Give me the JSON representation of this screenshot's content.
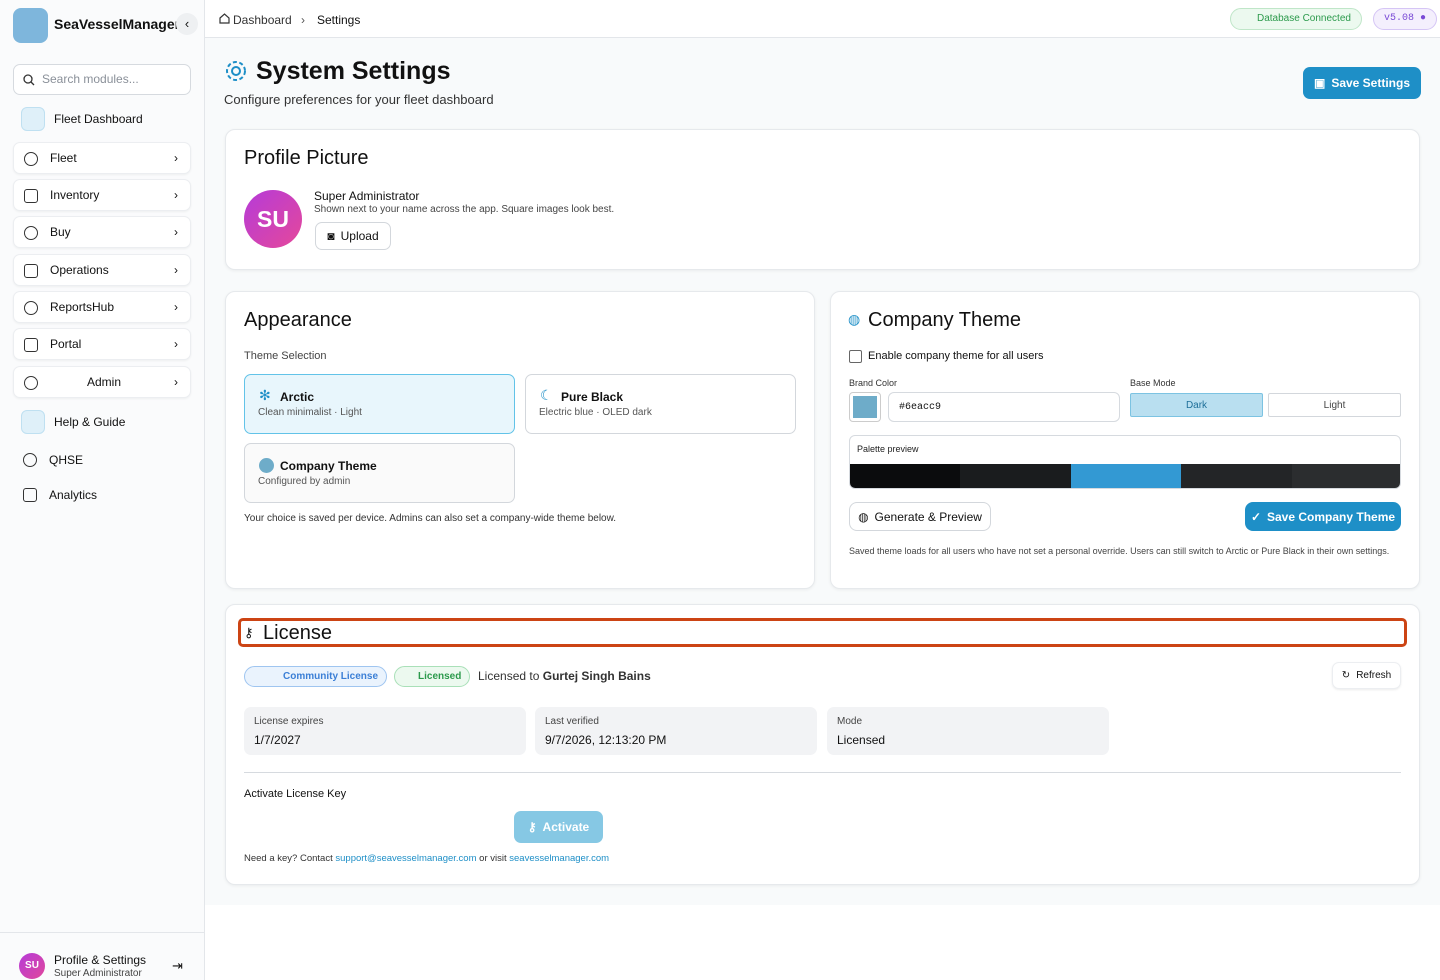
{
  "sidebar": {
    "brand": "SeaVesselManager",
    "search_placeholder": "Search modules...",
    "nav": [
      "Fleet Dashboard",
      "Fleet",
      "Inventory",
      "Buy",
      "Operations",
      "ReportsHub",
      "Portal",
      "Admin",
      "Help & Guide",
      "QHSE",
      "Analytics"
    ],
    "profile": {
      "initials": "SU",
      "name": "Profile & Settings",
      "role": "Super Administrator"
    }
  },
  "topbar": {
    "breadcrumb": [
      "Dashboard",
      "Settings"
    ],
    "status": "Database Connected",
    "version": "v5.08"
  },
  "header": {
    "title": "System Settings",
    "subtitle": "Configure preferences for your fleet dashboard",
    "save_button": "Save Settings"
  },
  "profile_picture": {
    "title": "Profile Picture",
    "initials": "SU",
    "name": "Super Administrator",
    "hint": "Shown next to your name across the app. Square images look best.",
    "upload_button": "Upload"
  },
  "appearance": {
    "title": "Appearance",
    "section_label": "Theme Selection",
    "themes": [
      {
        "name": "Arctic",
        "description": "Clean minimalist · Light"
      },
      {
        "name": "Pure Black",
        "description": "Electric blue · OLED dark"
      },
      {
        "name": "Company Theme",
        "description": "Configured by admin"
      }
    ],
    "note": "Your choice is saved per device. Admins can also set a company-wide theme below."
  },
  "company_theme": {
    "title": "Company Theme",
    "enable_label": "Enable company theme for all users",
    "brand_color_label": "Brand Color",
    "brand_color": "#6eacc9",
    "base_mode_label": "Base Mode",
    "modes": [
      "Dark",
      "Light"
    ],
    "palette_label": "Palette preview",
    "generate_button": "Generate & Preview",
    "save_button": "Save Company Theme",
    "note": "Saved theme loads for all users who have not set a personal override. Users can still switch to Arctic or Pure Black in their own settings."
  },
  "license": {
    "title": "License",
    "badges": [
      "Community License",
      "Licensed"
    ],
    "licensed_to_label": "Licensed to",
    "licensee": "Gurtej Singh Bains",
    "refresh_button": "Refresh",
    "stats": [
      {
        "label": "License expires",
        "value": "1/7/2027"
      },
      {
        "label": "Last verified",
        "value": "9/7/2026, 12:13:20 PM"
      },
      {
        "label": "Mode",
        "value": "Licensed"
      }
    ],
    "activate_label": "Activate License Key",
    "activate_button": "Activate",
    "help": {
      "prefix": "Need a key? Contact",
      "email": "support@seavesselmanager.com",
      "middle": "or visit",
      "site": "seavesselmanager.com"
    }
  }
}
